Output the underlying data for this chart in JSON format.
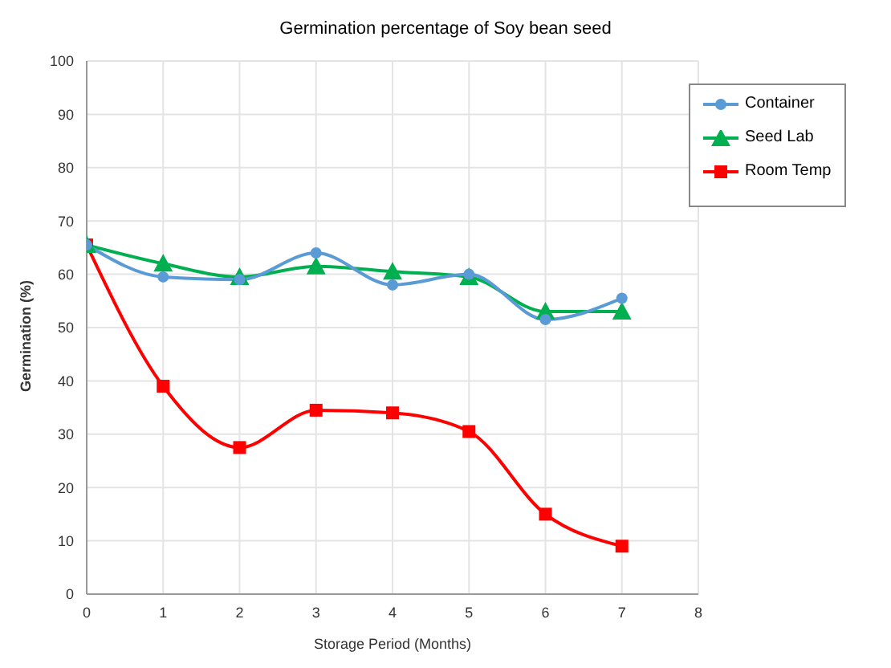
{
  "chart_data": {
    "type": "line",
    "title": "Germination percentage of Soy bean seed",
    "xlabel": "Storage Period (Months)",
    "ylabel": "Germination (%)",
    "x": [
      0,
      1,
      2,
      3,
      4,
      5,
      6,
      7
    ],
    "series": [
      {
        "name": "Container",
        "color": "#5b9bd5",
        "marker": "circle",
        "values": [
          65.5,
          59.5,
          59,
          64,
          58,
          60,
          51.5,
          55.5
        ]
      },
      {
        "name": "Seed Lab",
        "color": "#00b050",
        "marker": "triangle",
        "values": [
          65.5,
          62,
          59.5,
          61.5,
          60.5,
          59.5,
          53,
          53
        ]
      },
      {
        "name": "Room Temp",
        "color": "#ff0000",
        "marker": "square",
        "values": [
          65.5,
          39,
          27.5,
          34.5,
          34,
          30.5,
          15,
          9
        ]
      }
    ],
    "xlim": [
      0,
      8
    ],
    "xticks": [
      0,
      1,
      2,
      3,
      4,
      5,
      6,
      7,
      8
    ],
    "ylim": [
      0,
      100
    ],
    "yticks": [
      0,
      10,
      20,
      30,
      40,
      50,
      60,
      70,
      80,
      90,
      100
    ],
    "grid": true,
    "legend": "top right",
    "line_style": "solid"
  }
}
